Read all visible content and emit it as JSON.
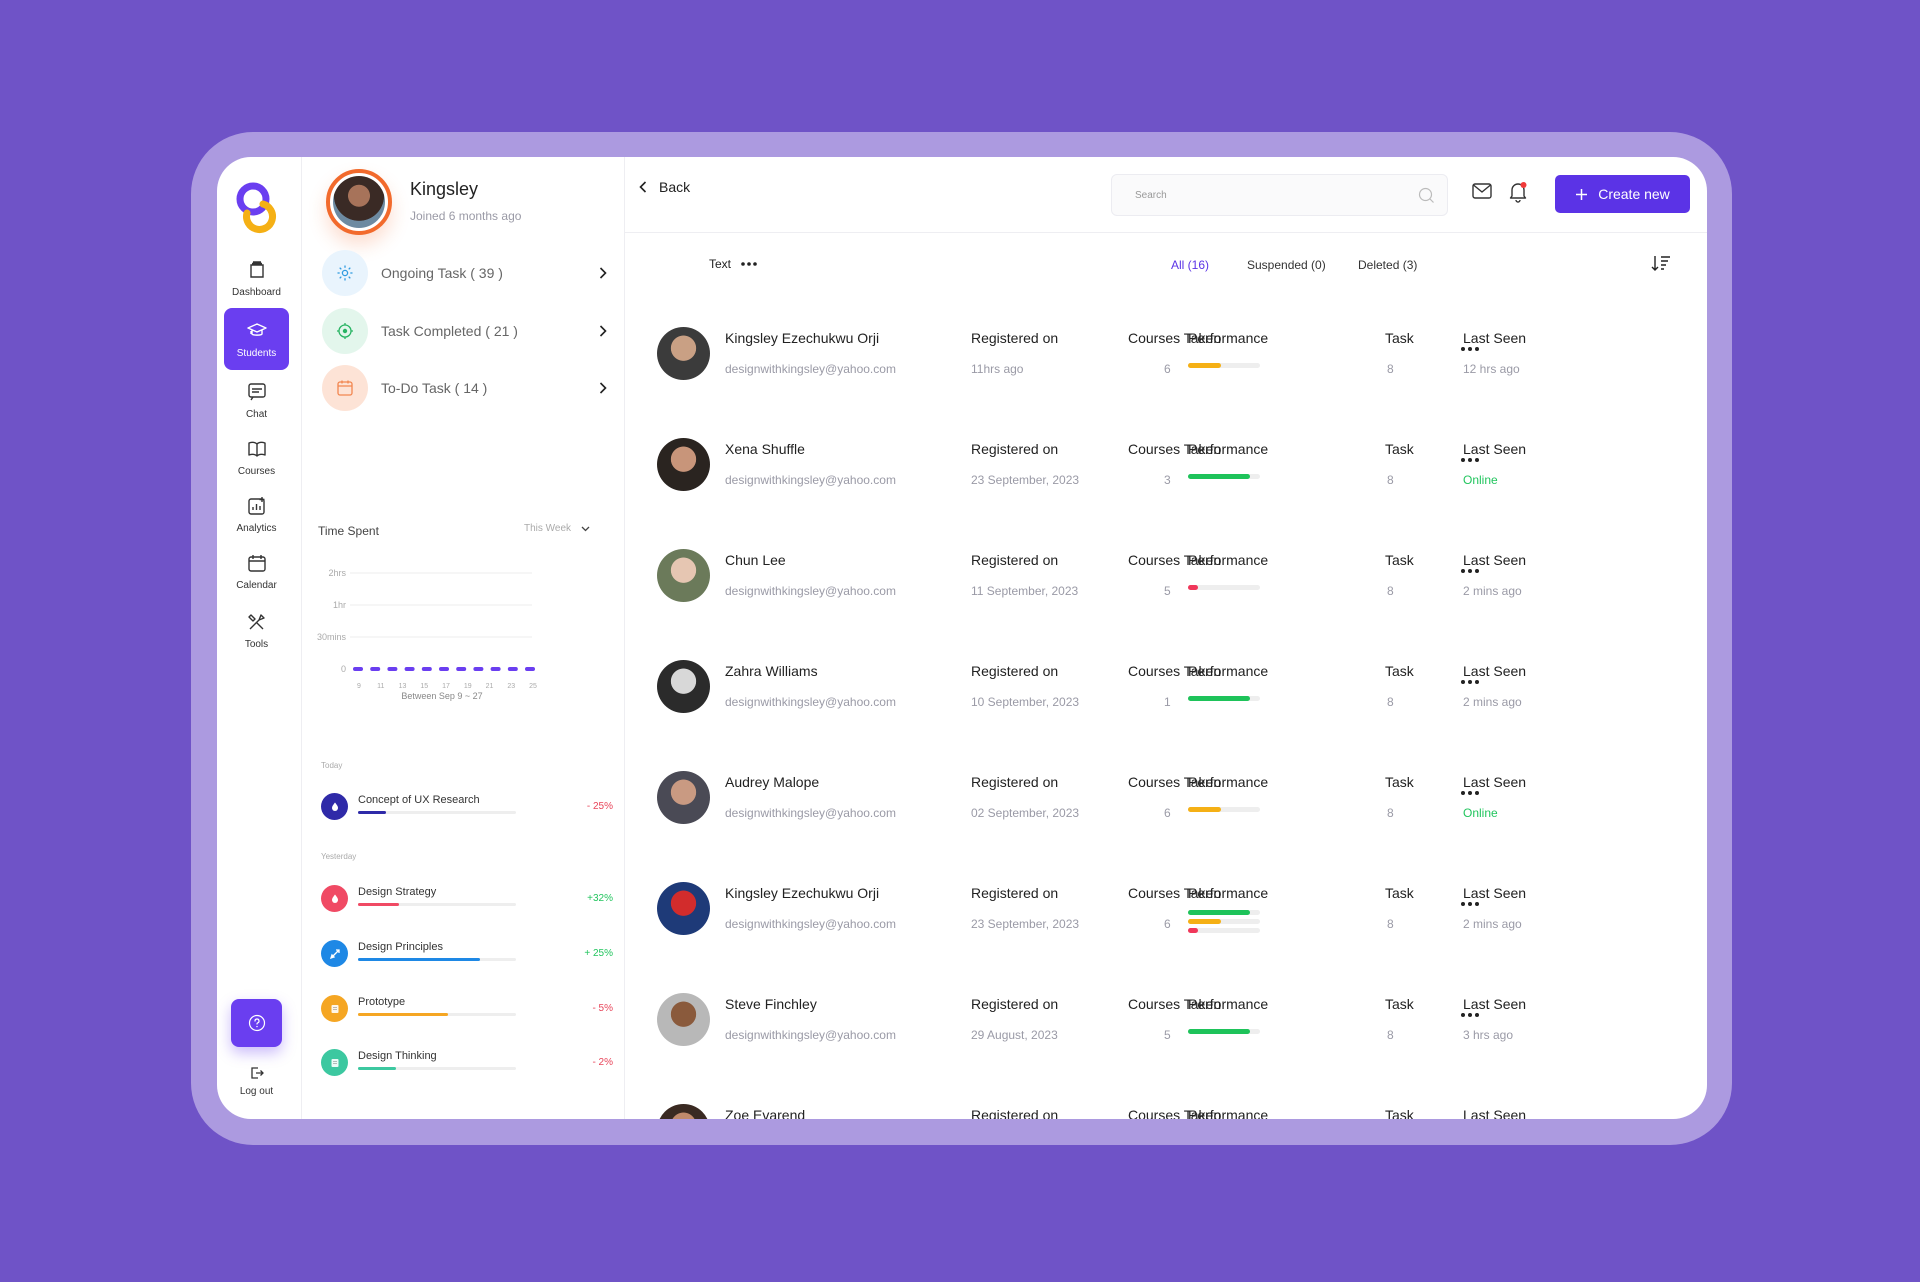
{
  "nav": {
    "items": [
      {
        "label": "Dashboard",
        "icon": "dashboard-icon"
      },
      {
        "label": "Students",
        "icon": "graduation-cap-icon",
        "active": true
      },
      {
        "label": "Chat",
        "icon": "chat-icon"
      },
      {
        "label": "Courses",
        "icon": "book-icon"
      },
      {
        "label": "Analytics",
        "icon": "analytics-icon"
      },
      {
        "label": "Calendar",
        "icon": "calendar-icon"
      },
      {
        "label": "Tools",
        "icon": "tools-icon"
      }
    ],
    "logout_label": "Log out"
  },
  "profile": {
    "name": "Kingsley",
    "joined": "Joined 6 months ago"
  },
  "tasks": [
    {
      "label": "Ongoing Task ( 39 )",
      "icon": "gear-icon",
      "bg": "#e9f4fd",
      "color": "#2f9be0"
    },
    {
      "label": "Task Completed ( 21 )",
      "icon": "target-icon",
      "bg": "#e3f6ec",
      "color": "#28b463"
    },
    {
      "label": "To-Do Task ( 14 )",
      "icon": "calendar-icon",
      "bg": "#fde3d6",
      "color": "#f2864f"
    }
  ],
  "time_spent": {
    "title": "Time Spent",
    "period": "This Week",
    "caption": "Between Sep 9 ~ 27"
  },
  "chart_data": {
    "type": "bar",
    "title": "Time Spent",
    "xlabel": "Between Sep 9 ~ 27",
    "ylabel": "",
    "y_ticks": [
      "0",
      "30mins",
      "1hr",
      "2hrs"
    ],
    "x_ticks": [
      "9",
      "11",
      "13",
      "15",
      "17",
      "19",
      "21",
      "23",
      "25"
    ],
    "values": [
      0,
      0,
      0,
      0,
      0,
      0,
      0,
      0,
      0,
      0,
      0
    ],
    "color": "#6a3ef0"
  },
  "activity": {
    "today_label": "Today",
    "yesterday_label": "Yesterday",
    "today": [
      {
        "name": "Concept of UX Research",
        "pct": "- 25%",
        "progress": 0.18,
        "color": "#2f2aa8",
        "pct_color": "#e8455a",
        "icon": "drop-icon"
      }
    ],
    "yesterday": [
      {
        "name": "Design Strategy",
        "pct": "+32%",
        "progress": 0.26,
        "color": "#f04a64",
        "pct_color": "#22c55e",
        "icon": "drop-icon"
      },
      {
        "name": "Design Principles",
        "pct": "+ 25%",
        "progress": 0.77,
        "color": "#1e88e5",
        "pct_color": "#22c55e",
        "icon": "pen-icon"
      },
      {
        "name": "Prototype",
        "pct": "- 5%",
        "progress": 0.57,
        "color": "#f5a623",
        "pct_color": "#e8455a",
        "icon": "note-icon"
      },
      {
        "name": "Design Thinking",
        "pct": "- 2%",
        "progress": 0.24,
        "color": "#3cc8a0",
        "pct_color": "#e8455a",
        "icon": "note-icon"
      }
    ]
  },
  "topbar": {
    "back": "Back",
    "search_placeholder": "Search",
    "create": "Create new"
  },
  "filters": {
    "text": "Text",
    "tabs": [
      "All (16)",
      "Suspended (0)",
      "Deleted (3)"
    ]
  },
  "columns": {
    "registered": "Registered on",
    "courses": "Courses Taken",
    "performance": "Performance",
    "task": "Task",
    "last_seen": "Last Seen"
  },
  "students": [
    {
      "name": "Kingsley Ezechukwu Orji",
      "email": "designwithkingsley@yahoo.com",
      "registered": "11hrs ago",
      "courses": "6",
      "task": "8",
      "last_seen": "12 hrs ago",
      "online": false,
      "perf": [
        {
          "value": 0.46,
          "color": "#f5b015"
        }
      ],
      "avatar": [
        "#3b3b3b",
        "#c9a084"
      ]
    },
    {
      "name": "Xena Shuffle",
      "email": "designwithkingsley@yahoo.com",
      "registered": "23 September, 2023",
      "courses": "3",
      "task": "8",
      "last_seen": "Online",
      "online": true,
      "perf": [
        {
          "value": 0.86,
          "color": "#1ec35a"
        }
      ],
      "avatar": [
        "#2a2420",
        "#c8957a"
      ]
    },
    {
      "name": "Chun Lee",
      "email": "designwithkingsley@yahoo.com",
      "registered": "11 September, 2023",
      "courses": "5",
      "task": "8",
      "last_seen": "2 mins ago",
      "online": false,
      "perf": [
        {
          "value": 0.14,
          "color": "#f0375a"
        }
      ],
      "avatar": [
        "#6b7a5a",
        "#e6c6b2"
      ]
    },
    {
      "name": "Zahra Williams",
      "email": "designwithkingsley@yahoo.com",
      "registered": "10 September, 2023",
      "courses": "1",
      "task": "8",
      "last_seen": "2 mins ago",
      "online": false,
      "perf": [
        {
          "value": 0.86,
          "color": "#1ec35a"
        }
      ],
      "avatar": [
        "#2b2b2b",
        "#d8d8d8"
      ]
    },
    {
      "name": "Audrey Malope",
      "email": "designwithkingsley@yahoo.com",
      "registered": "02 September, 2023",
      "courses": "6",
      "task": "8",
      "last_seen": "Online",
      "online": true,
      "perf": [
        {
          "value": 0.46,
          "color": "#f5b015"
        }
      ],
      "avatar": [
        "#4a4a55",
        "#c99a82"
      ]
    },
    {
      "name": "Kingsley Ezechukwu Orji",
      "email": "designwithkingsley@yahoo.com",
      "registered": "23 September, 2023",
      "courses": "6",
      "task": "8",
      "last_seen": "2 mins ago",
      "online": false,
      "perf": [
        {
          "value": 0.86,
          "color": "#1ec35a"
        },
        {
          "value": 0.46,
          "color": "#f5b015"
        },
        {
          "value": 0.14,
          "color": "#f0375a"
        }
      ],
      "avatar": [
        "#1e3a78",
        "#d22c2c"
      ]
    },
    {
      "name": "Steve Finchley",
      "email": "designwithkingsley@yahoo.com",
      "registered": "29 August, 2023",
      "courses": "5",
      "task": "8",
      "last_seen": "3 hrs ago",
      "online": false,
      "perf": [
        {
          "value": 0.86,
          "color": "#1ec35a"
        }
      ],
      "avatar": [
        "#b8b8b8",
        "#8a5a3c"
      ]
    },
    {
      "name": "Zoe Evarend",
      "email": "designwithkingsley@yahoo.com",
      "registered": "",
      "courses": "",
      "task": "",
      "last_seen": "",
      "online": false,
      "perf": [],
      "avatar": [
        "#3a2a22",
        "#c08a6c"
      ]
    }
  ]
}
